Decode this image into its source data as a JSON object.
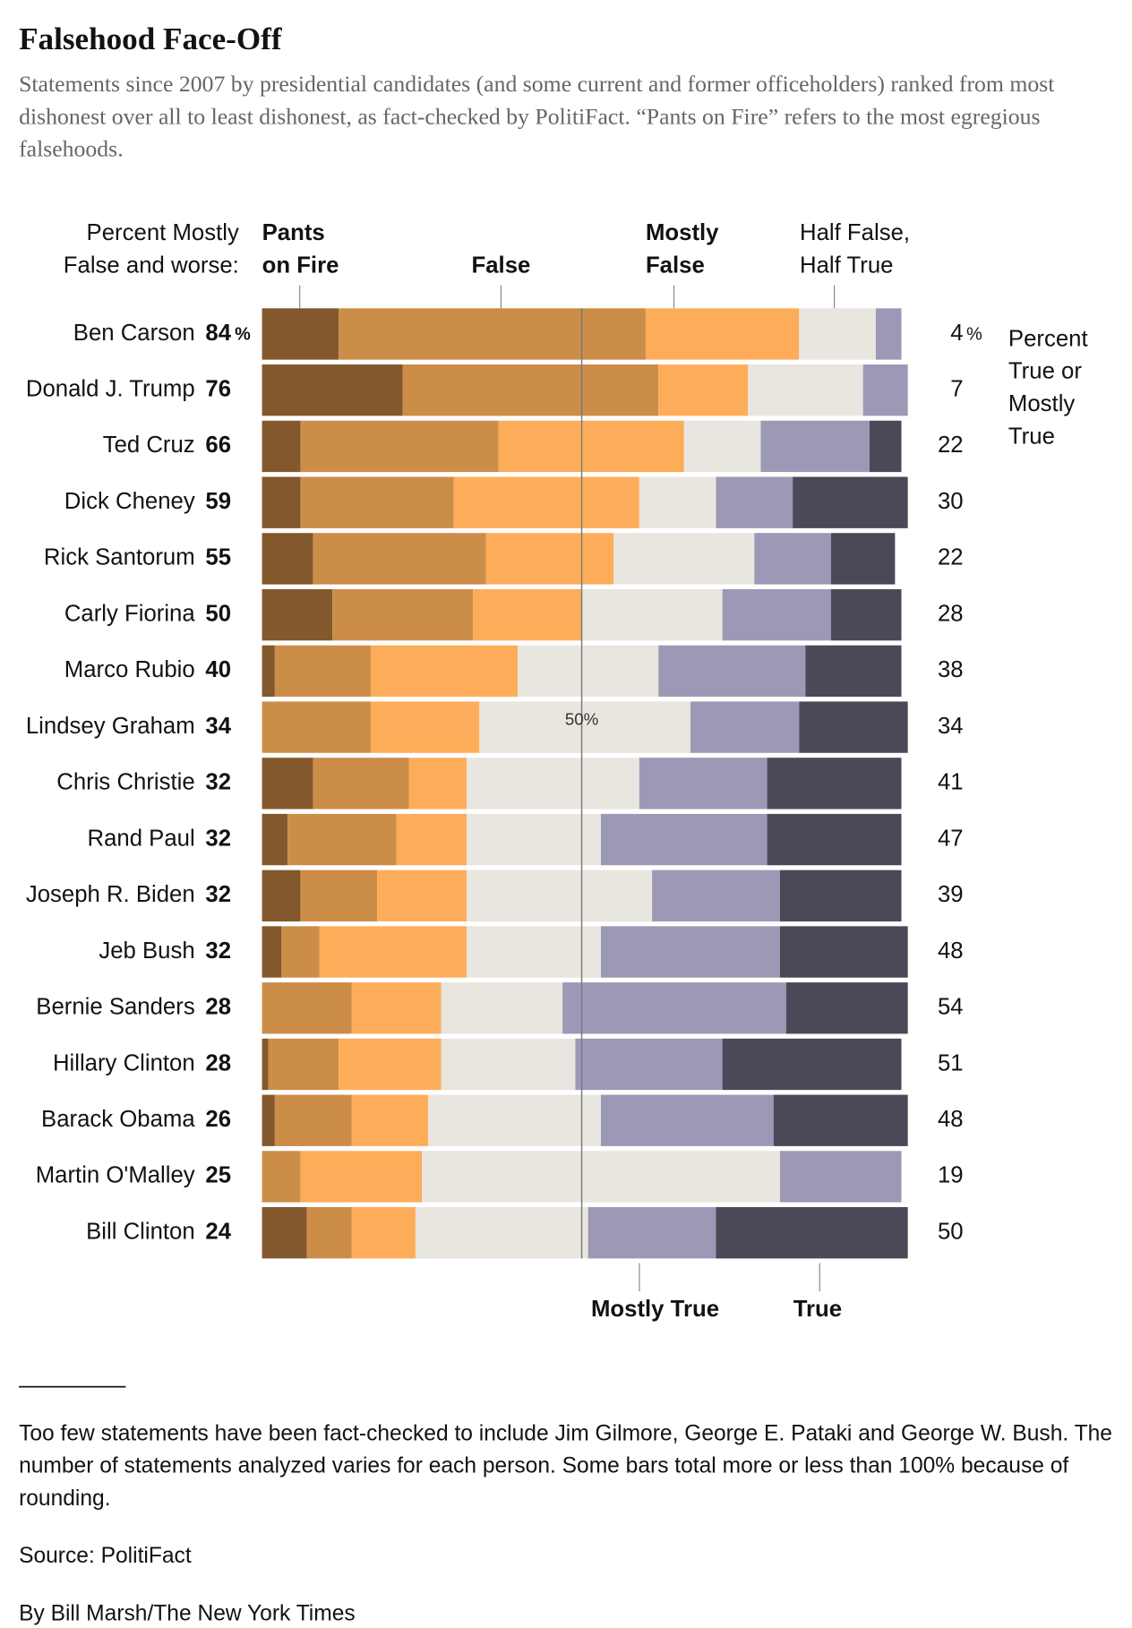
{
  "chart_data": {
    "type": "stacked-bar",
    "title": "Falsehood Face-Off",
    "subtitle": "Statements since 2007 by presidential candidates (and some current and former officeholders) ranked from most dishonest over all to least dishonest, as fact-checked by PolitiFact. “Pants on Fire” refers to the most egregious falsehoods.",
    "left_header": "Percent Mostly False and worse:",
    "right_header": "Percent True or Mostly True",
    "unit": "%",
    "xlim": [
      0,
      100
    ],
    "midline": {
      "value": 50,
      "label": "50%"
    },
    "categories": [
      "Ben Carson",
      "Donald J. Trump",
      "Ted Cruz",
      "Dick Cheney",
      "Rick Santorum",
      "Carly Fiorina",
      "Marco Rubio",
      "Lindsey Graham",
      "Chris Christie",
      "Rand Paul",
      "Joseph R. Biden",
      "Jeb Bush",
      "Bernie Sanders",
      "Hillary Clinton",
      "Barack Obama",
      "Martin O'Malley",
      "Bill Clinton"
    ],
    "false_and_worse": [
      84,
      76,
      66,
      59,
      55,
      50,
      40,
      34,
      32,
      32,
      32,
      32,
      28,
      28,
      26,
      25,
      24
    ],
    "true_or_mostly_true": [
      4,
      7,
      22,
      30,
      22,
      28,
      38,
      34,
      41,
      47,
      39,
      48,
      54,
      51,
      48,
      19,
      50
    ],
    "series": [
      {
        "name": "Pants on Fire",
        "color": "#83582c",
        "values": [
          12,
          22,
          6,
          6,
          8,
          11,
          2,
          0,
          8,
          4,
          6,
          3,
          0,
          1,
          2,
          0,
          7
        ]
      },
      {
        "name": "False",
        "color": "#cc8d48",
        "values": [
          48,
          40,
          31,
          24,
          27,
          22,
          15,
          17,
          15,
          17,
          12,
          6,
          14,
          11,
          12,
          6,
          7
        ]
      },
      {
        "name": "Mostly False",
        "color": "#fdad5a",
        "values": [
          24,
          14,
          29,
          29,
          20,
          17,
          23,
          17,
          9,
          11,
          14,
          23,
          14,
          16,
          12,
          19,
          10
        ]
      },
      {
        "name": "Half False, Half True",
        "color": "#e8e6df",
        "values": [
          12,
          18,
          12,
          12,
          22,
          22,
          22,
          33,
          27,
          21,
          29,
          21,
          19,
          21,
          27,
          56,
          27
        ]
      },
      {
        "name": "Mostly True",
        "color": "#9c99b6",
        "values": [
          4,
          7,
          17,
          12,
          12,
          17,
          23,
          17,
          20,
          26,
          20,
          28,
          35,
          23,
          27,
          19,
          20
        ]
      },
      {
        "name": "True",
        "color": "#4a4957",
        "values": [
          0,
          0,
          5,
          18,
          10,
          11,
          15,
          17,
          21,
          21,
          19,
          20,
          19,
          28,
          21,
          0,
          30
        ]
      }
    ]
  },
  "footer": {
    "note": "Too few statements have been fact-checked to include Jim Gilmore, George E. Pataki and George W. Bush. The number of statements analyzed varies for each person. Some bars total more or less than 100% because of rounding.",
    "source": "Source: PolitiFact",
    "byline": "By Bill Marsh/The New York Times"
  }
}
